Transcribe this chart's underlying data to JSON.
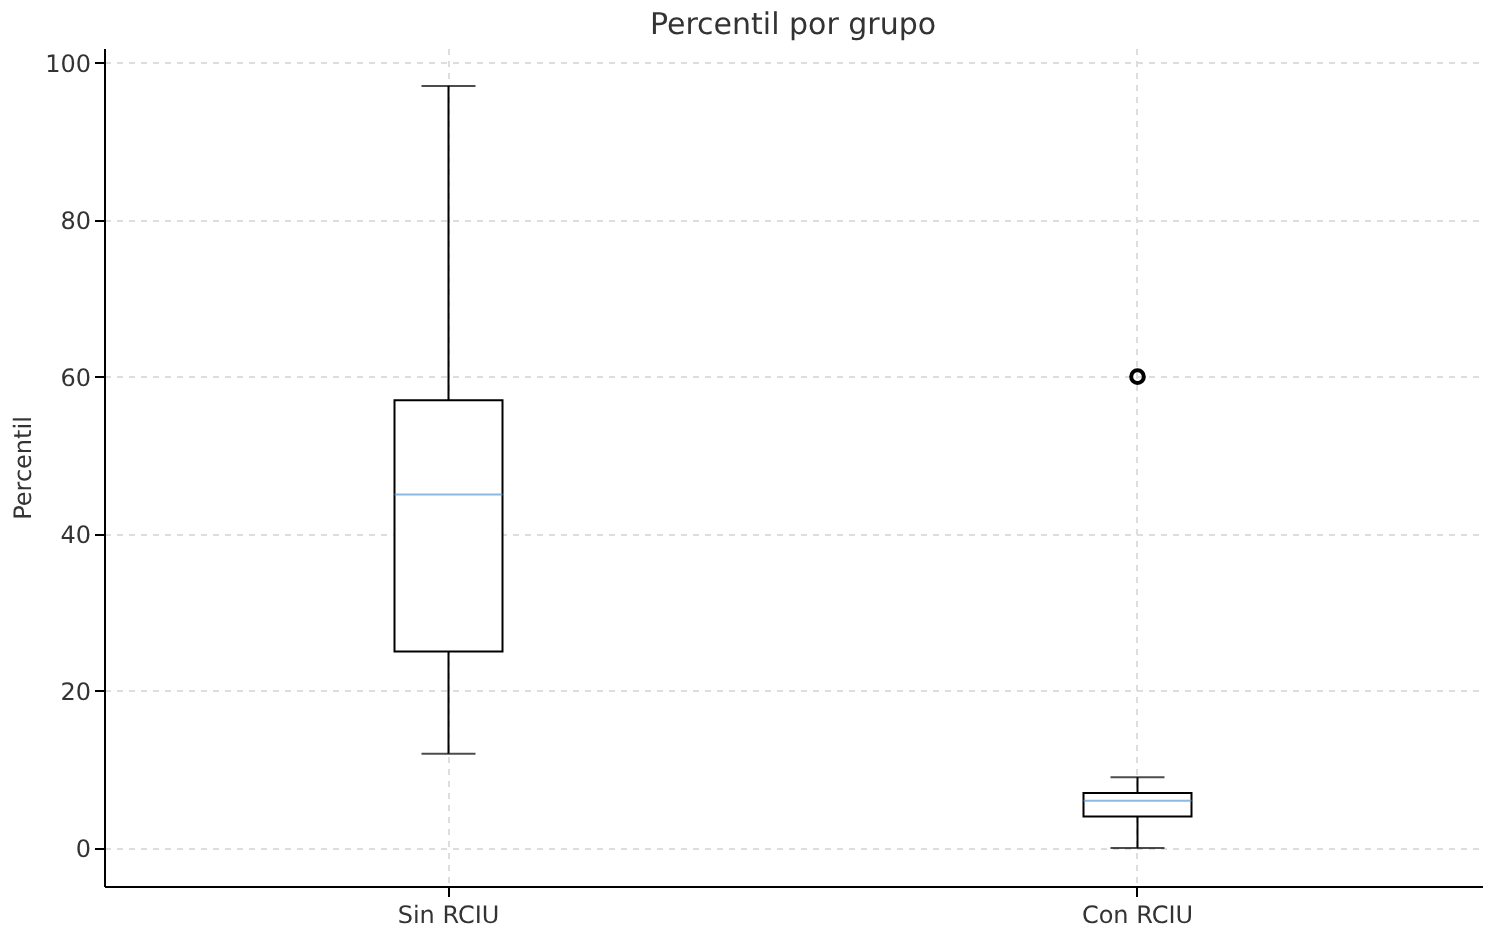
{
  "chart_data": {
    "type": "box",
    "title": "Percentil por grupo",
    "ylabel": "Percentil",
    "categories": [
      "Sin RCIU",
      "Con RCIU"
    ],
    "boxes": [
      {
        "low": 12,
        "q1": 25,
        "median": 45,
        "q3": 57,
        "high": 97
      },
      {
        "low": 0,
        "q1": 4,
        "median": 6,
        "q3": 7,
        "high": 9,
        "outliers": [
          60
        ]
      }
    ],
    "color": "#000000",
    "ylim": [
      -4.85,
      101.85
    ],
    "yticks": [
      0,
      20,
      40,
      60,
      80,
      100
    ],
    "grid": true
  }
}
